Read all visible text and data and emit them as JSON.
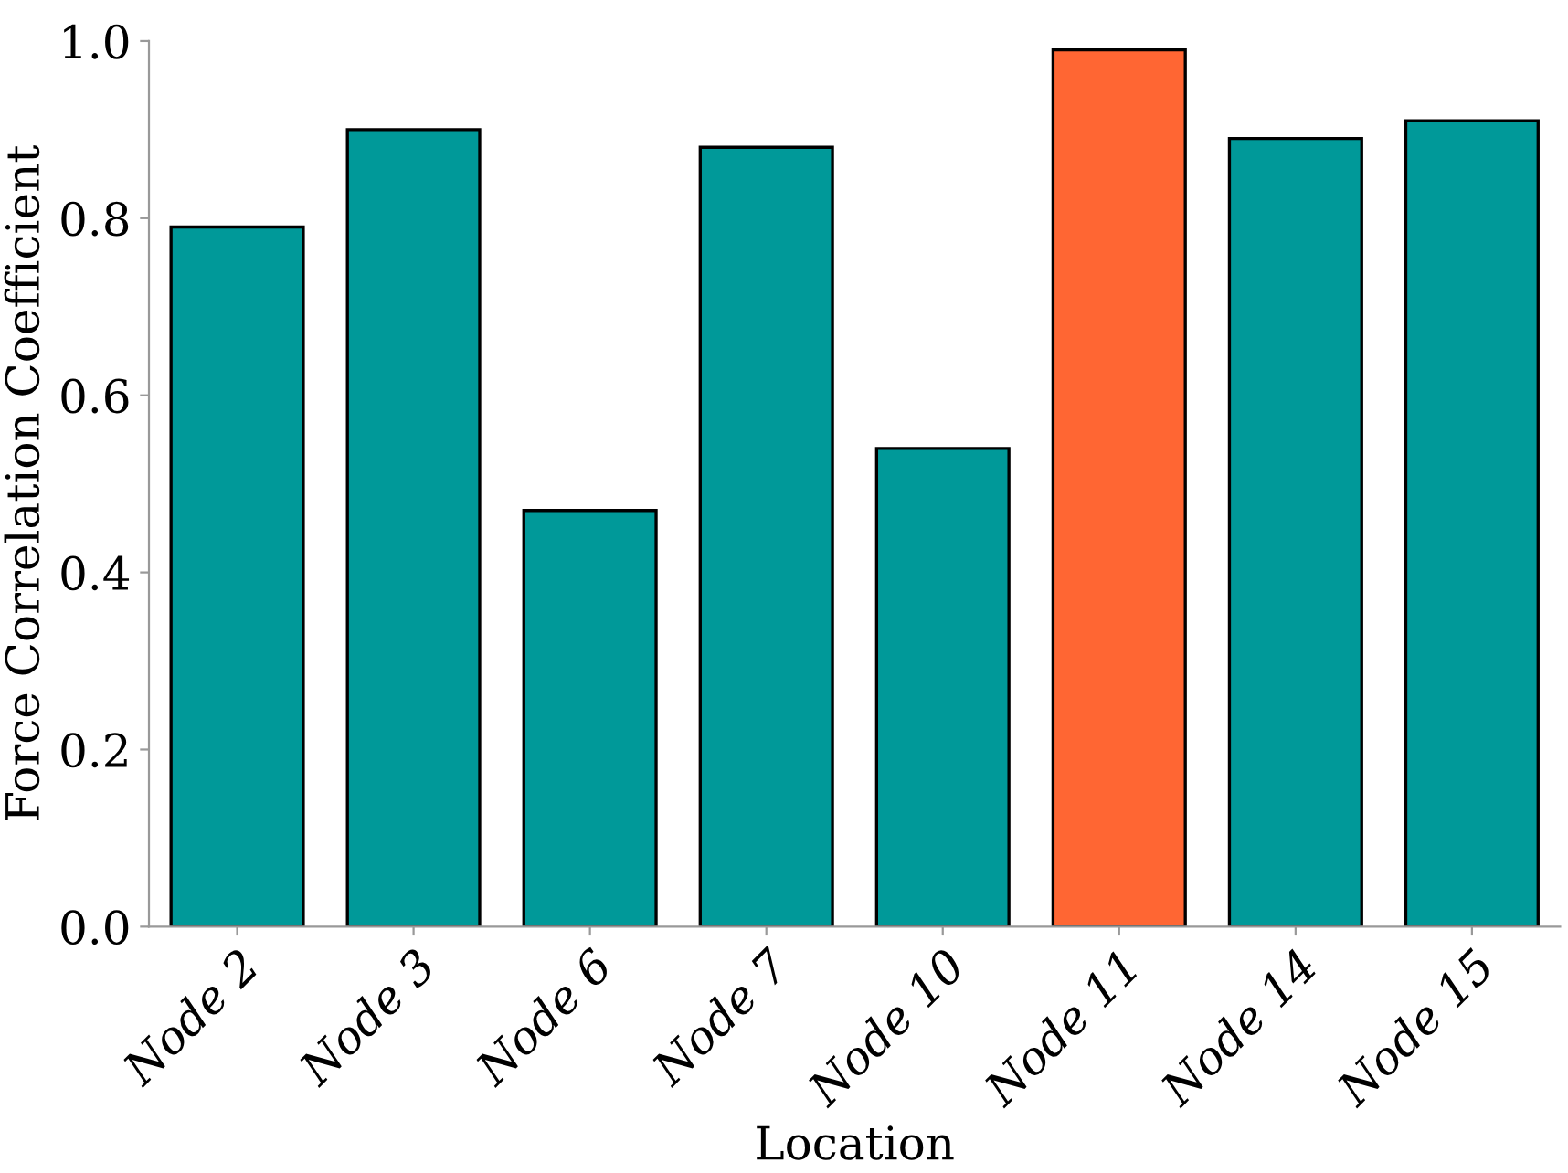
{
  "chart_data": {
    "type": "bar",
    "xlabel": "Location",
    "ylabel": "Force Correlation Coefficient",
    "categories": [
      "Node 2",
      "Node 3",
      "Node 6",
      "Node 7",
      "Node 10",
      "Node 11",
      "Node 14",
      "Node 15"
    ],
    "values": [
      0.79,
      0.9,
      0.47,
      0.88,
      0.54,
      0.99,
      0.89,
      0.91
    ],
    "colors": [
      "#009999",
      "#009999",
      "#009999",
      "#009999",
      "#009999",
      "#ff6633",
      "#009999",
      "#009999"
    ],
    "ylim": [
      0,
      1.0
    ],
    "yticks": [
      {
        "value": 0,
        "label": "0.0"
      },
      {
        "value": 0.2,
        "label": "0.2"
      },
      {
        "value": 0.4,
        "label": "0.4"
      },
      {
        "value": 0.6,
        "label": "0.6"
      },
      {
        "value": 0.8,
        "label": "0.8"
      },
      {
        "value": 1.0,
        "label": "1.0"
      }
    ],
    "grid": false,
    "legend": false
  }
}
